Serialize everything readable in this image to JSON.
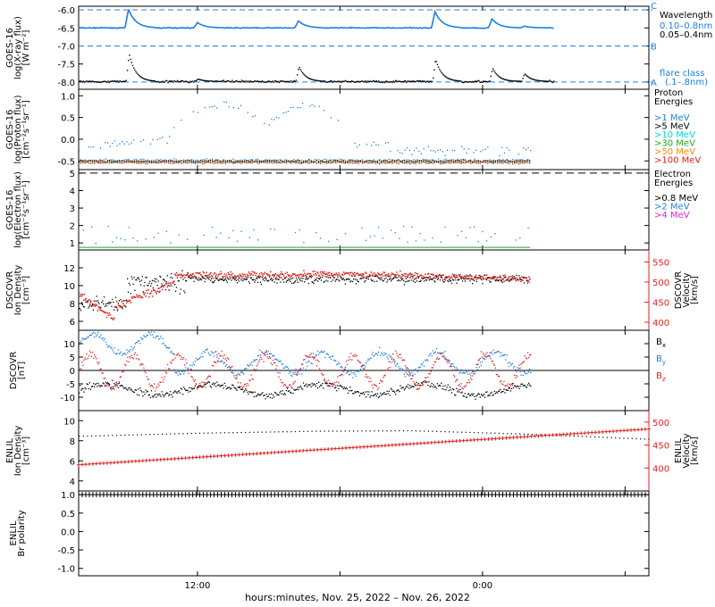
{
  "colors": {
    "black": "#000000",
    "blue": "#1f7fe0",
    "cyan": "#00d8d8",
    "green": "#22aa22",
    "orange": "#ff8800",
    "red": "#e02020",
    "magenta": "#e020e0"
  },
  "chart_data": [
    {
      "type": "line",
      "ylabel": [
        "GOES-16",
        "log(X-ray flux)",
        "[W m⁻²]"
      ],
      "yticks": [
        -6.0,
        -6.5,
        -7.0,
        -7.5,
        -8.0
      ],
      "yticklabels": [
        "-6.0",
        "-6.5",
        "-7.0",
        "-7.5",
        "-8.0"
      ],
      "ylim": [
        -8.2,
        -5.9
      ],
      "flare_levels": [
        {
          "y": -6.0,
          "label": "C"
        },
        {
          "y": -7.0,
          "label": "B"
        },
        {
          "y": -8.0,
          "label": "A"
        }
      ],
      "legend": {
        "title": "Wavelength",
        "entries": [
          {
            "label": "0.10–0.8nm",
            "color": "#1f7fe0"
          },
          {
            "label": "0.05–0.4nm",
            "color": "#000000"
          }
        ],
        "extra": [
          "flare class",
          "(.1–.8nm)"
        ]
      },
      "series": [
        {
          "name": "0.10–0.8nm",
          "color": "#1f7fe0",
          "baseline": -6.45,
          "noise": 0.03,
          "peaks": [
            [
              4,
              -5.98
            ],
            [
              14.5,
              -6.3
            ],
            [
              24.5,
              -6.2
            ],
            [
              34.5,
              -6.05
            ],
            [
              45,
              -6.1
            ]
          ],
          "end": 38
        }
      ],
      "x_end": 38
    },
    {
      "type": "scatter",
      "ylabel": [
        "GOES-16",
        "log(Proton flux)",
        "[cm⁻²s⁻¹sr⁻¹]"
      ],
      "yticks": [
        1.0,
        0.5,
        0.0,
        -0.5
      ],
      "yticklabels": [
        "1.0",
        "0.5",
        "0.0",
        "-0.5"
      ],
      "ylim": [
        -0.7,
        1.15
      ],
      "legend": {
        "title": [
          "Proton",
          "Energies"
        ],
        "entries": [
          {
            "label": ">1 MeV",
            "color": "#1f7fe0"
          },
          {
            "label": ">5 MeV",
            "color": "#000000"
          },
          {
            "label": ">10 MeV",
            "color": "#00d8d8"
          },
          {
            "label": ">30 MeV",
            "color": "#22aa22"
          },
          {
            "label": ">50 MeV",
            "color": "#ff8800"
          },
          {
            "label": ">100 MeV",
            "color": "#e02020"
          }
        ]
      },
      "x_end": 38
    },
    {
      "type": "scatter",
      "ylabel": [
        "GOES-16",
        "log(Electron flux)",
        "[cm⁻²s⁻¹sr⁻¹]"
      ],
      "yticks": [
        5,
        4,
        3,
        2,
        1
      ],
      "yticklabels": [
        "5",
        "4",
        "3",
        "2",
        "1"
      ],
      "ylim": [
        0.6,
        5.2
      ],
      "threshold": 5,
      "legend": {
        "title": [
          "Electron",
          "Energies"
        ],
        "entries": [
          {
            "label": ">0.8 MeV",
            "color": "#000000"
          },
          {
            "label": ">2 MeV",
            "color": "#1f7fe0"
          },
          {
            "label": ">4 MeV",
            "color": "#e020e0"
          }
        ]
      },
      "x_end": 38
    },
    {
      "type": "scatter",
      "ylabel": [
        "DSCOVR",
        "Ion Density",
        "[cm⁻³]"
      ],
      "yticks": [
        12,
        10,
        8,
        6
      ],
      "yticklabels": [
        "12",
        "10",
        "8",
        "6"
      ],
      "ylim": [
        5,
        14
      ],
      "y2label": [
        "DSCOVR",
        "Velocity",
        "[km/s]"
      ],
      "y2ticks": [
        550,
        500,
        450,
        400
      ],
      "y2ticklabels": [
        "550",
        "500",
        "450",
        "400"
      ],
      "y2lim": [
        380,
        580
      ],
      "x_end": 38
    },
    {
      "type": "scatter",
      "ylabel": [
        "DSCOVR",
        "[nT]"
      ],
      "yticks": [
        10,
        5,
        0,
        -5,
        -10
      ],
      "yticklabels": [
        "10",
        "5",
        "0",
        "-5",
        "-10"
      ],
      "ylim": [
        -15,
        15
      ],
      "zero_line": true,
      "legend": {
        "entries": [
          {
            "label": "Bx",
            "color": "#000000"
          },
          {
            "label": "By",
            "color": "#1f7fe0"
          },
          {
            "label": "Bz",
            "color": "#e02020"
          }
        ]
      },
      "x_end": 38
    },
    {
      "type": "line",
      "ylabel": [
        "ENLIL",
        "Ion Density",
        "[cm⁻³]"
      ],
      "yticks": [
        10,
        8,
        6,
        4
      ],
      "yticklabels": [
        "10",
        "8",
        "6",
        "4"
      ],
      "ylim": [
        3,
        11
      ],
      "y2label": [
        "ENLIL",
        "Velocity",
        "[km/s]"
      ],
      "y2ticks": [
        500,
        450,
        400
      ],
      "y2ticklabels": [
        "500",
        "450",
        "400"
      ],
      "y2lim": [
        350,
        525
      ],
      "series": [
        {
          "name": "Density",
          "color": "#000000",
          "x": [
            0,
            10,
            20,
            28,
            38,
            48
          ],
          "values": [
            8.5,
            8.8,
            9.0,
            9.05,
            8.7,
            8.2
          ]
        },
        {
          "name": "Velocity",
          "color": "#e02020",
          "x": [
            0,
            48
          ],
          "values": [
            407,
            485
          ]
        }
      ],
      "x_end": 48
    },
    {
      "type": "scatter",
      "ylabel": [
        "ENLIL",
        "Br polarity"
      ],
      "yticks": [
        1.0,
        0.5,
        0.0,
        -0.5,
        -1.0
      ],
      "yticklabels": [
        "1.0",
        "0.5",
        "0.0",
        "-0.5",
        "-1.0"
      ],
      "ylim": [
        -1.2,
        1.1
      ],
      "series": [
        {
          "name": "polarity",
          "color": "#000000",
          "x": [
            0,
            48
          ],
          "values": [
            1,
            1
          ]
        }
      ],
      "x_end": 48
    }
  ],
  "xaxis": {
    "range": [
      2,
      50
    ],
    "ticks": [
      12,
      24,
      36,
      48
    ],
    "ticklabels": [
      "12:00",
      "",
      "0:00",
      ""
    ],
    "xlabel": "hours:minutes, Nov. 25, 2022 – Nov. 26, 2022"
  }
}
